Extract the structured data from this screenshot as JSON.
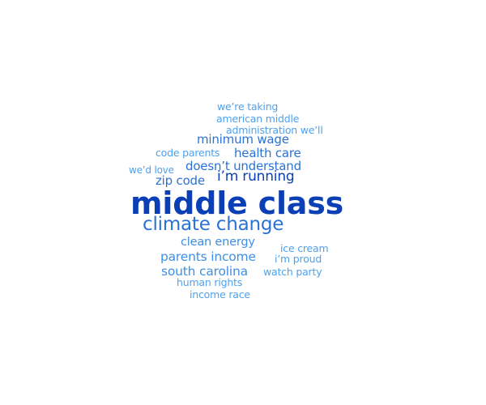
{
  "word_cloud": {
    "words": {
      "middle_class": "middle class",
      "climate_change": "climate change",
      "im_running": "i’m running",
      "minimum_wage": "minimum wage",
      "health_care": "health care",
      "doesnt_understand": "doesn’t understand",
      "zip_code": "zip code",
      "clean_energy": "clean energy",
      "parents_income": "parents income",
      "south_carolina": "south carolina",
      "were_taking": "we’re taking",
      "american_middle": "american middle",
      "administration_well": "administration we’ll",
      "code_parents": "code parents",
      "wed_love": "we’d love",
      "ice_cream": "ice cream",
      "im_proud": "i’m proud",
      "watch_party": "watch party",
      "human_rights": "human rights",
      "income_race": "income race"
    },
    "colors": {
      "darkest": "#0b3fb5",
      "dark": "#2a72d8",
      "medium": "#3d8fe6",
      "light": "#4ea1ee"
    }
  }
}
